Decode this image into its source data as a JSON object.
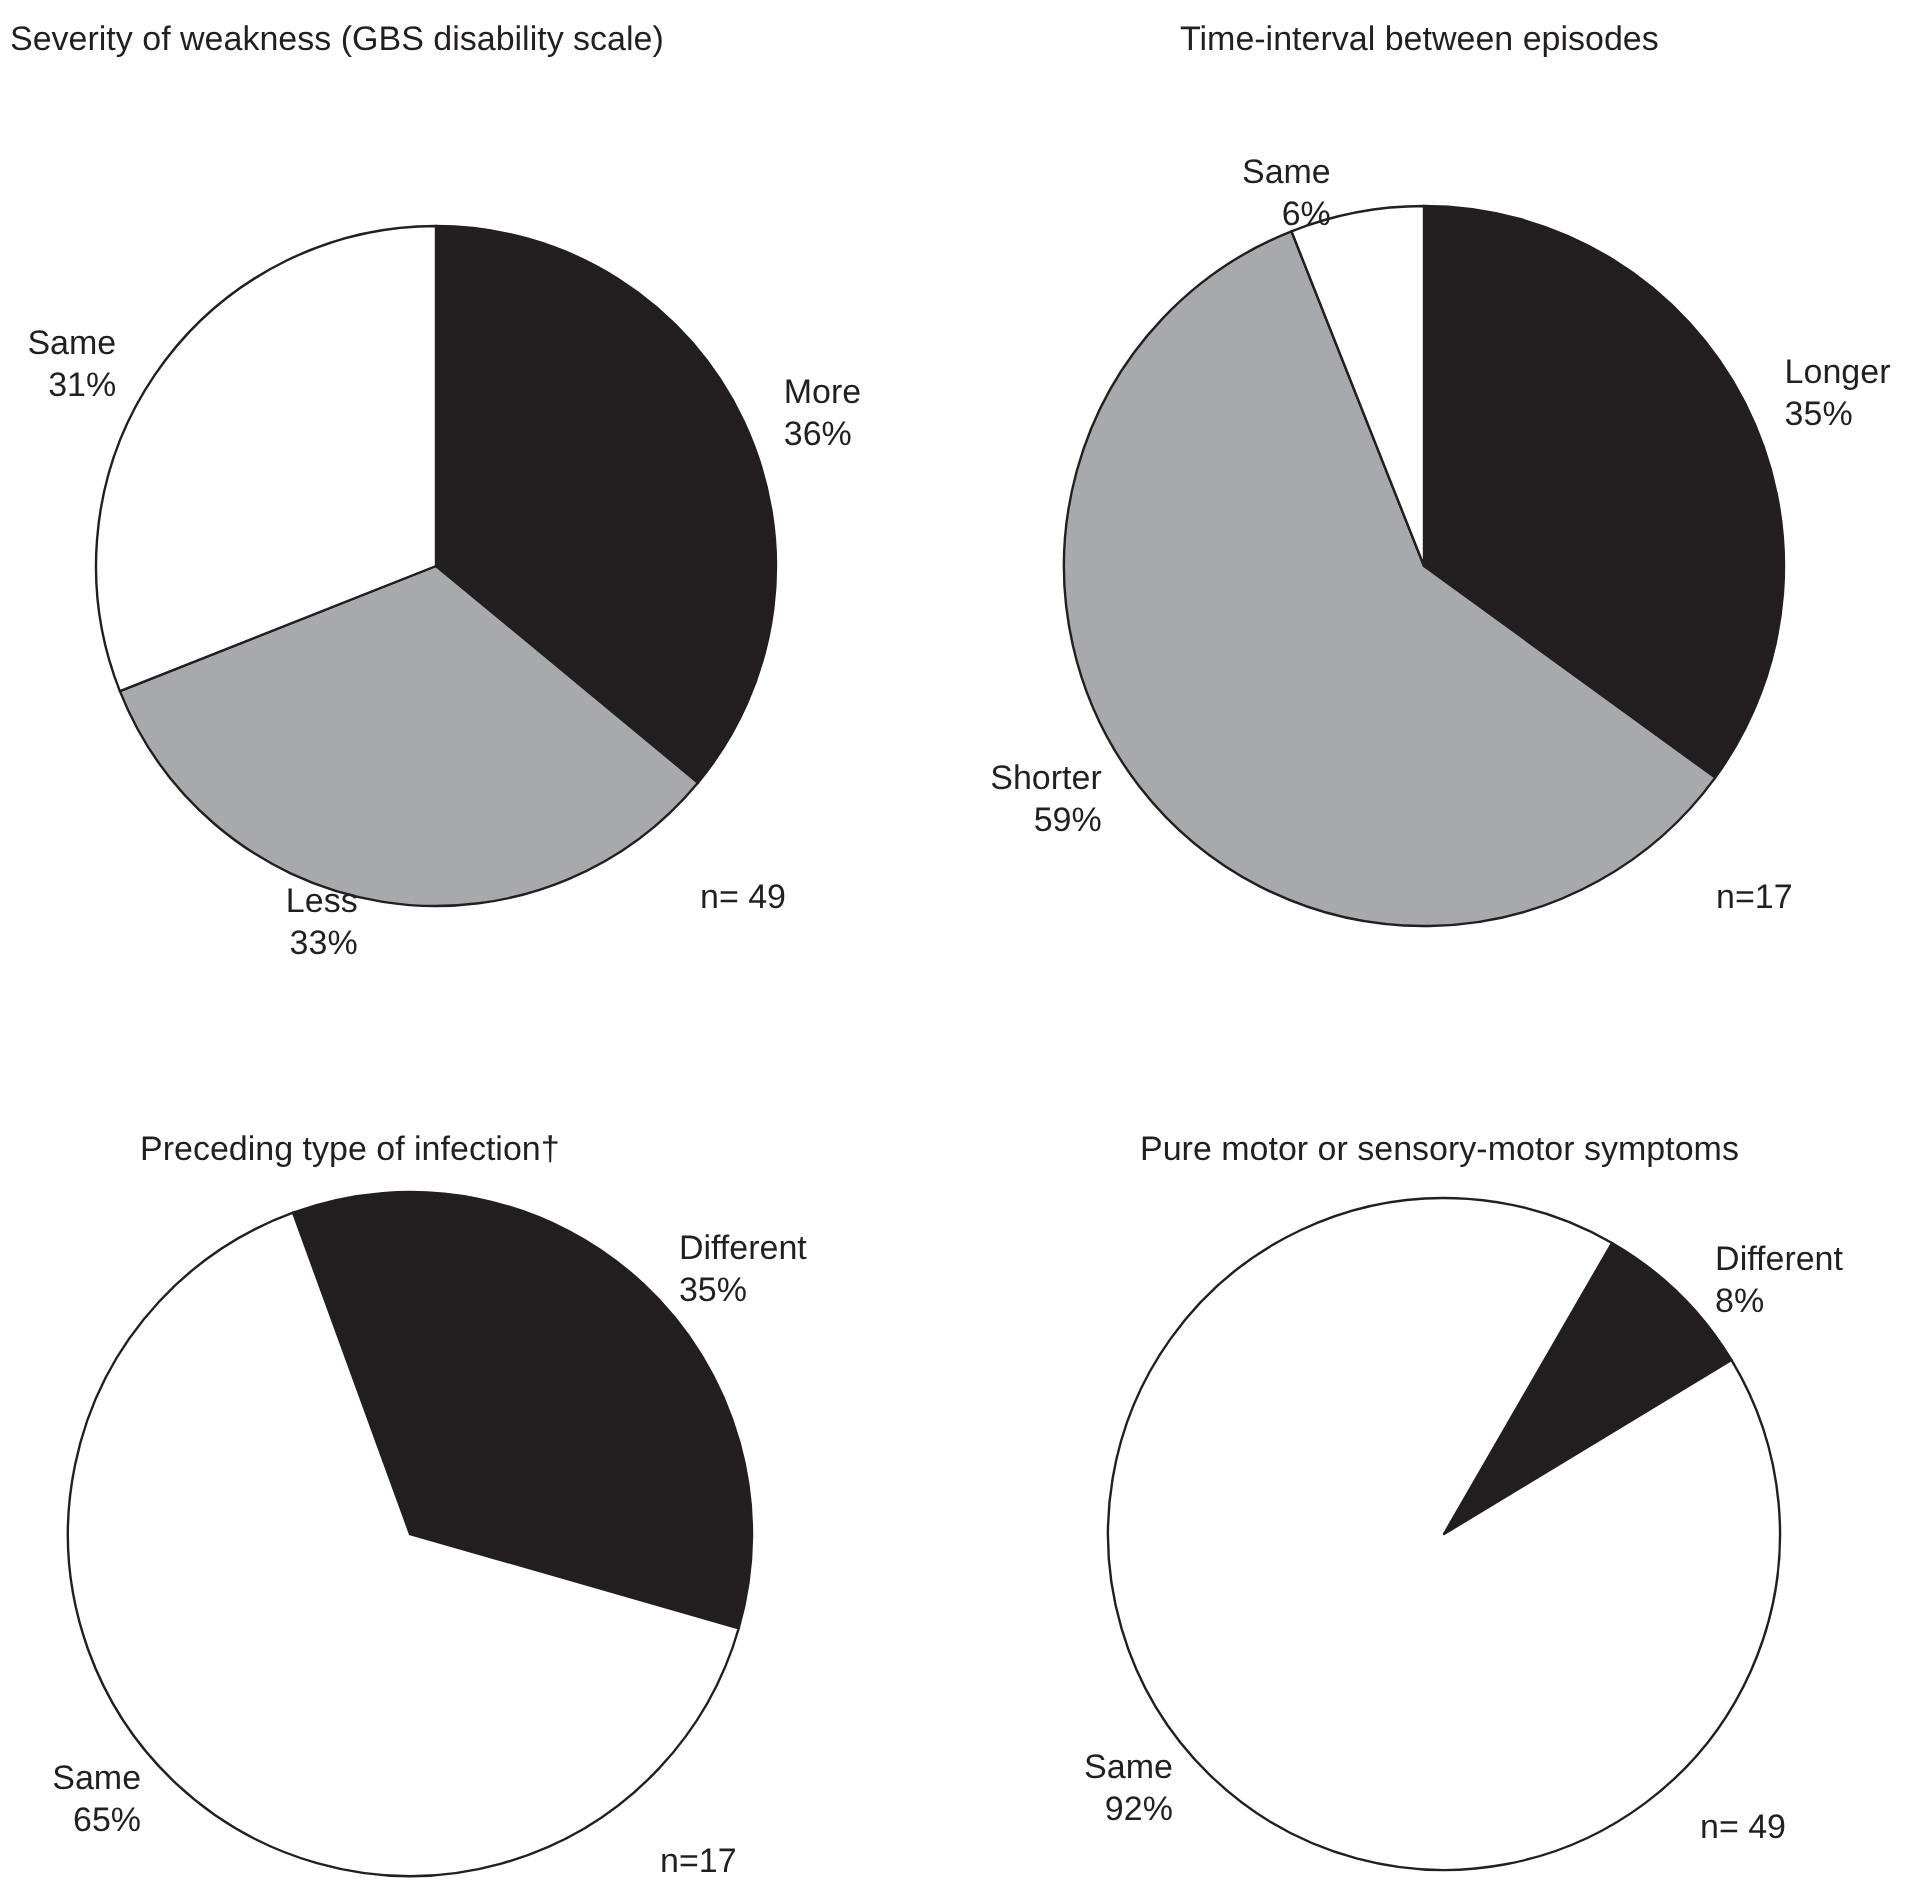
{
  "chart_data": [
    {
      "type": "pie",
      "title": "Severity of weakness (GBS disability scale)",
      "categories": [
        "More",
        "Less",
        "Same"
      ],
      "values": [
        36,
        33,
        31
      ],
      "value_labels": [
        "36%",
        "33%",
        "31%"
      ],
      "colors": [
        "#231f20",
        "#a7a9ac",
        "#ffffff"
      ],
      "annotations": [
        "n= 49"
      ]
    },
    {
      "type": "pie",
      "title": "Time-interval between episodes",
      "categories": [
        "Longer",
        "Shorter",
        "Same"
      ],
      "values": [
        35,
        59,
        6
      ],
      "value_labels": [
        "35%",
        "59%",
        "6%"
      ],
      "colors": [
        "#231f20",
        "#a7a9ac",
        "#ffffff"
      ],
      "annotations": [
        "n=17"
      ]
    },
    {
      "type": "pie",
      "title": "Preceding type of infection†",
      "categories": [
        "Different",
        "Same"
      ],
      "values": [
        35,
        65
      ],
      "value_labels": [
        "35%",
        "65%"
      ],
      "colors": [
        "#231f20",
        "#ffffff"
      ],
      "annotations": [
        "n=17"
      ]
    },
    {
      "type": "pie",
      "title": "Pure motor or sensory-motor symptoms",
      "categories": [
        "Different",
        "Same"
      ],
      "values": [
        8,
        92
      ],
      "value_labels": [
        "8%",
        "92%"
      ],
      "colors": [
        "#231f20",
        "#ffffff"
      ],
      "annotations": [
        "n= 49"
      ]
    }
  ]
}
